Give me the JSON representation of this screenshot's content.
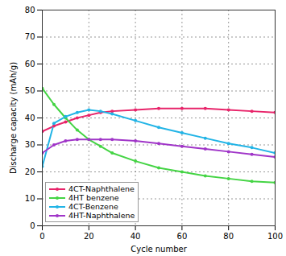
{
  "chart_data": {
    "type": "line",
    "x_label": "Cycle number",
    "y_label": "Discharge capacity (mAh/g)",
    "xlim": [
      0,
      100
    ],
    "xticks": [
      0,
      20,
      40,
      60,
      80,
      100
    ],
    "ylim": [
      0,
      80
    ],
    "yticks": [
      0,
      10,
      20,
      30,
      40,
      50,
      60,
      70,
      80
    ],
    "grid": true,
    "legend": "lower left",
    "marker": "circle",
    "x": [
      0,
      5,
      10,
      15,
      20,
      25,
      30,
      40,
      50,
      60,
      70,
      80,
      90,
      100
    ],
    "series": [
      {
        "name": "4CT-Naphthalene",
        "color": "#e8246a",
        "values": [
          35,
          37,
          38.5,
          40,
          41,
          42,
          42.5,
          43,
          43.5,
          43.5,
          43.5,
          43,
          42.5,
          42
        ]
      },
      {
        "name": "4HT benzene",
        "color": "#44d444",
        "values": [
          51,
          45,
          40,
          35.5,
          32,
          29.5,
          27,
          24,
          21.5,
          20,
          18.5,
          17.5,
          16.5,
          16
        ]
      },
      {
        "name": "4CT-Benzene",
        "color": "#22b4e6",
        "values": [
          22,
          38,
          40.5,
          42,
          43,
          42.5,
          41.5,
          39,
          36.5,
          34.5,
          32.5,
          30.5,
          29,
          27
        ]
      },
      {
        "name": "4HT-Naphthalene",
        "color": "#a035c8",
        "values": [
          27,
          30,
          31.5,
          32,
          32,
          32,
          32,
          31.5,
          30.5,
          29.5,
          28.5,
          27.5,
          26.5,
          25.5
        ]
      }
    ]
  }
}
